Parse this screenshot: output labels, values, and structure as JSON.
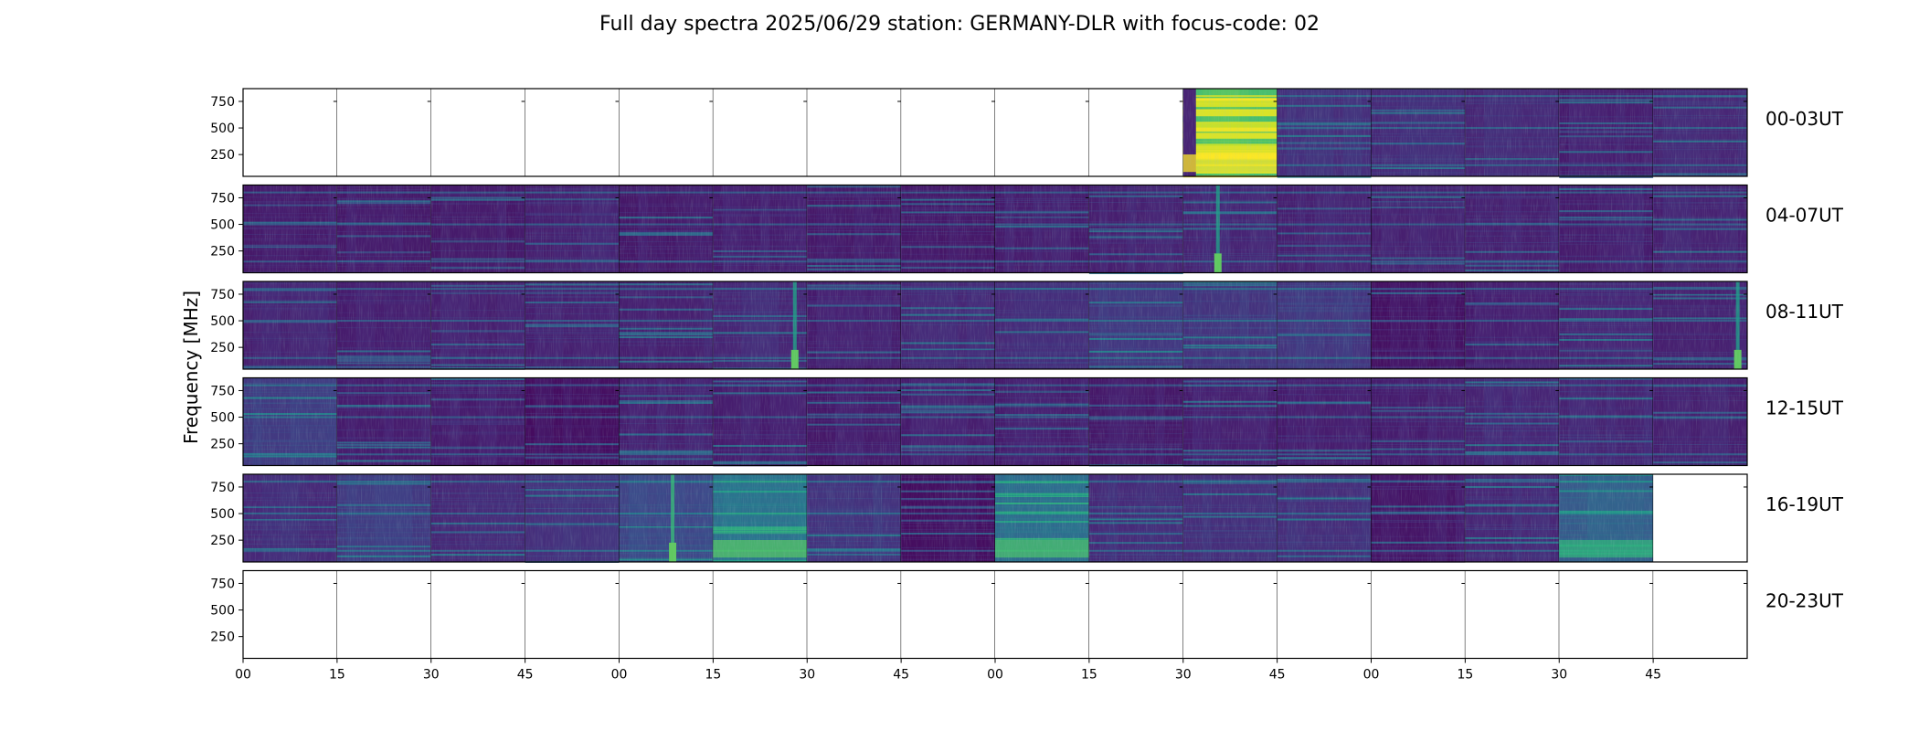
{
  "chart_data": {
    "type": "heatmap",
    "title": "Full day spectra 2025/06/29 station: GERMANY-DLR with focus-code: 02",
    "ylabel": "Frequency [MHz]",
    "xlabel": "",
    "ylim": [
      45,
      870
    ],
    "yticks": [
      "750",
      "500",
      "250"
    ],
    "ytick_values": [
      750,
      500,
      250
    ],
    "xticks": [
      "00",
      "15",
      "30",
      "45",
      "00",
      "15",
      "30",
      "45",
      "00",
      "15",
      "30",
      "45",
      "00",
      "15",
      "30",
      "45"
    ],
    "x_minutes": [
      0,
      15,
      30,
      45,
      60,
      75,
      90,
      105,
      120,
      135,
      150,
      165,
      180,
      195,
      210,
      225
    ],
    "colormap": [
      "#440154",
      "#482878",
      "#3e4989",
      "#31688e",
      "#26828e",
      "#1f9e89",
      "#35b779",
      "#6ece58",
      "#b5de2b",
      "#fde725"
    ],
    "rows": [
      {
        "label": "00-03UT",
        "panels": [
          {
            "has_data": false
          },
          {
            "has_data": false
          },
          {
            "has_data": false
          },
          {
            "has_data": false
          },
          {
            "has_data": false
          },
          {
            "has_data": false
          },
          {
            "has_data": false
          },
          {
            "has_data": false
          },
          {
            "has_data": false
          },
          {
            "has_data": false
          },
          {
            "has_data": true,
            "base_level": 0.72,
            "bright_bands": [
              0.15,
              0.42,
              0.66
            ]
          },
          {
            "has_data": true,
            "base_level": 0.14
          },
          {
            "has_data": true,
            "base_level": 0.13
          },
          {
            "has_data": true,
            "base_level": 0.12
          },
          {
            "has_data": true,
            "base_level": 0.09
          },
          {
            "has_data": true,
            "base_level": 0.12
          }
        ]
      },
      {
        "label": "04-07UT",
        "panels": [
          {
            "has_data": true,
            "base_level": 0.08
          },
          {
            "has_data": true,
            "base_level": 0.08
          },
          {
            "has_data": true,
            "base_level": 0.08
          },
          {
            "has_data": true,
            "base_level": 0.1
          },
          {
            "has_data": true,
            "base_level": 0.08
          },
          {
            "has_data": true,
            "base_level": 0.09
          },
          {
            "has_data": true,
            "base_level": 0.08
          },
          {
            "has_data": true,
            "base_level": 0.08
          },
          {
            "has_data": true,
            "base_level": 0.09
          },
          {
            "has_data": true,
            "base_level": 0.1
          },
          {
            "has_data": true,
            "base_level": 0.11,
            "burst_at": 0.35
          },
          {
            "has_data": true,
            "base_level": 0.1
          },
          {
            "has_data": true,
            "base_level": 0.1
          },
          {
            "has_data": true,
            "base_level": 0.1
          },
          {
            "has_data": true,
            "base_level": 0.09
          },
          {
            "has_data": true,
            "base_level": 0.1
          }
        ]
      },
      {
        "label": "08-11UT",
        "panels": [
          {
            "has_data": true,
            "base_level": 0.1
          },
          {
            "has_data": true,
            "base_level": 0.09
          },
          {
            "has_data": true,
            "base_level": 0.1
          },
          {
            "has_data": true,
            "base_level": 0.1
          },
          {
            "has_data": true,
            "base_level": 0.1
          },
          {
            "has_data": true,
            "base_level": 0.12,
            "burst_at": 0.85
          },
          {
            "has_data": true,
            "base_level": 0.09
          },
          {
            "has_data": true,
            "base_level": 0.12
          },
          {
            "has_data": true,
            "base_level": 0.13
          },
          {
            "has_data": true,
            "base_level": 0.17
          },
          {
            "has_data": true,
            "base_level": 0.16
          },
          {
            "has_data": true,
            "base_level": 0.17
          },
          {
            "has_data": true,
            "base_level": 0.06
          },
          {
            "has_data": true,
            "base_level": 0.09
          },
          {
            "has_data": true,
            "base_level": 0.11
          },
          {
            "has_data": true,
            "base_level": 0.1,
            "burst_at": 0.88
          }
        ]
      },
      {
        "label": "12-15UT",
        "panels": [
          {
            "has_data": true,
            "base_level": 0.18
          },
          {
            "has_data": true,
            "base_level": 0.09
          },
          {
            "has_data": true,
            "base_level": 0.09
          },
          {
            "has_data": true,
            "base_level": 0.05
          },
          {
            "has_data": true,
            "base_level": 0.1
          },
          {
            "has_data": true,
            "base_level": 0.09
          },
          {
            "has_data": true,
            "base_level": 0.08
          },
          {
            "has_data": true,
            "base_level": 0.09
          },
          {
            "has_data": true,
            "base_level": 0.09
          },
          {
            "has_data": true,
            "base_level": 0.08
          },
          {
            "has_data": true,
            "base_level": 0.09
          },
          {
            "has_data": true,
            "base_level": 0.09
          },
          {
            "has_data": true,
            "base_level": 0.09
          },
          {
            "has_data": true,
            "base_level": 0.11
          },
          {
            "has_data": true,
            "base_level": 0.11
          },
          {
            "has_data": true,
            "base_level": 0.1
          }
        ]
      },
      {
        "label": "16-19UT",
        "panels": [
          {
            "has_data": true,
            "base_level": 0.13
          },
          {
            "has_data": true,
            "base_level": 0.18
          },
          {
            "has_data": true,
            "base_level": 0.12
          },
          {
            "has_data": true,
            "base_level": 0.15
          },
          {
            "has_data": true,
            "base_level": 0.22,
            "burst_at": 0.55
          },
          {
            "has_data": true,
            "base_level": 0.38
          },
          {
            "has_data": true,
            "base_level": 0.16
          },
          {
            "has_data": true,
            "base_level": 0.05
          },
          {
            "has_data": true,
            "base_level": 0.36
          },
          {
            "has_data": true,
            "base_level": 0.13
          },
          {
            "has_data": true,
            "base_level": 0.14
          },
          {
            "has_data": true,
            "base_level": 0.14
          },
          {
            "has_data": true,
            "base_level": 0.07
          },
          {
            "has_data": true,
            "base_level": 0.12
          },
          {
            "has_data": true,
            "base_level": 0.3
          },
          {
            "has_data": false
          }
        ]
      },
      {
        "label": "20-23UT",
        "panels": [
          {
            "has_data": false
          },
          {
            "has_data": false
          },
          {
            "has_data": false
          },
          {
            "has_data": false
          },
          {
            "has_data": false
          },
          {
            "has_data": false
          },
          {
            "has_data": false
          },
          {
            "has_data": false
          },
          {
            "has_data": false
          },
          {
            "has_data": false
          },
          {
            "has_data": false
          },
          {
            "has_data": false
          },
          {
            "has_data": false
          },
          {
            "has_data": false
          },
          {
            "has_data": false
          },
          {
            "has_data": false
          }
        ]
      }
    ]
  }
}
